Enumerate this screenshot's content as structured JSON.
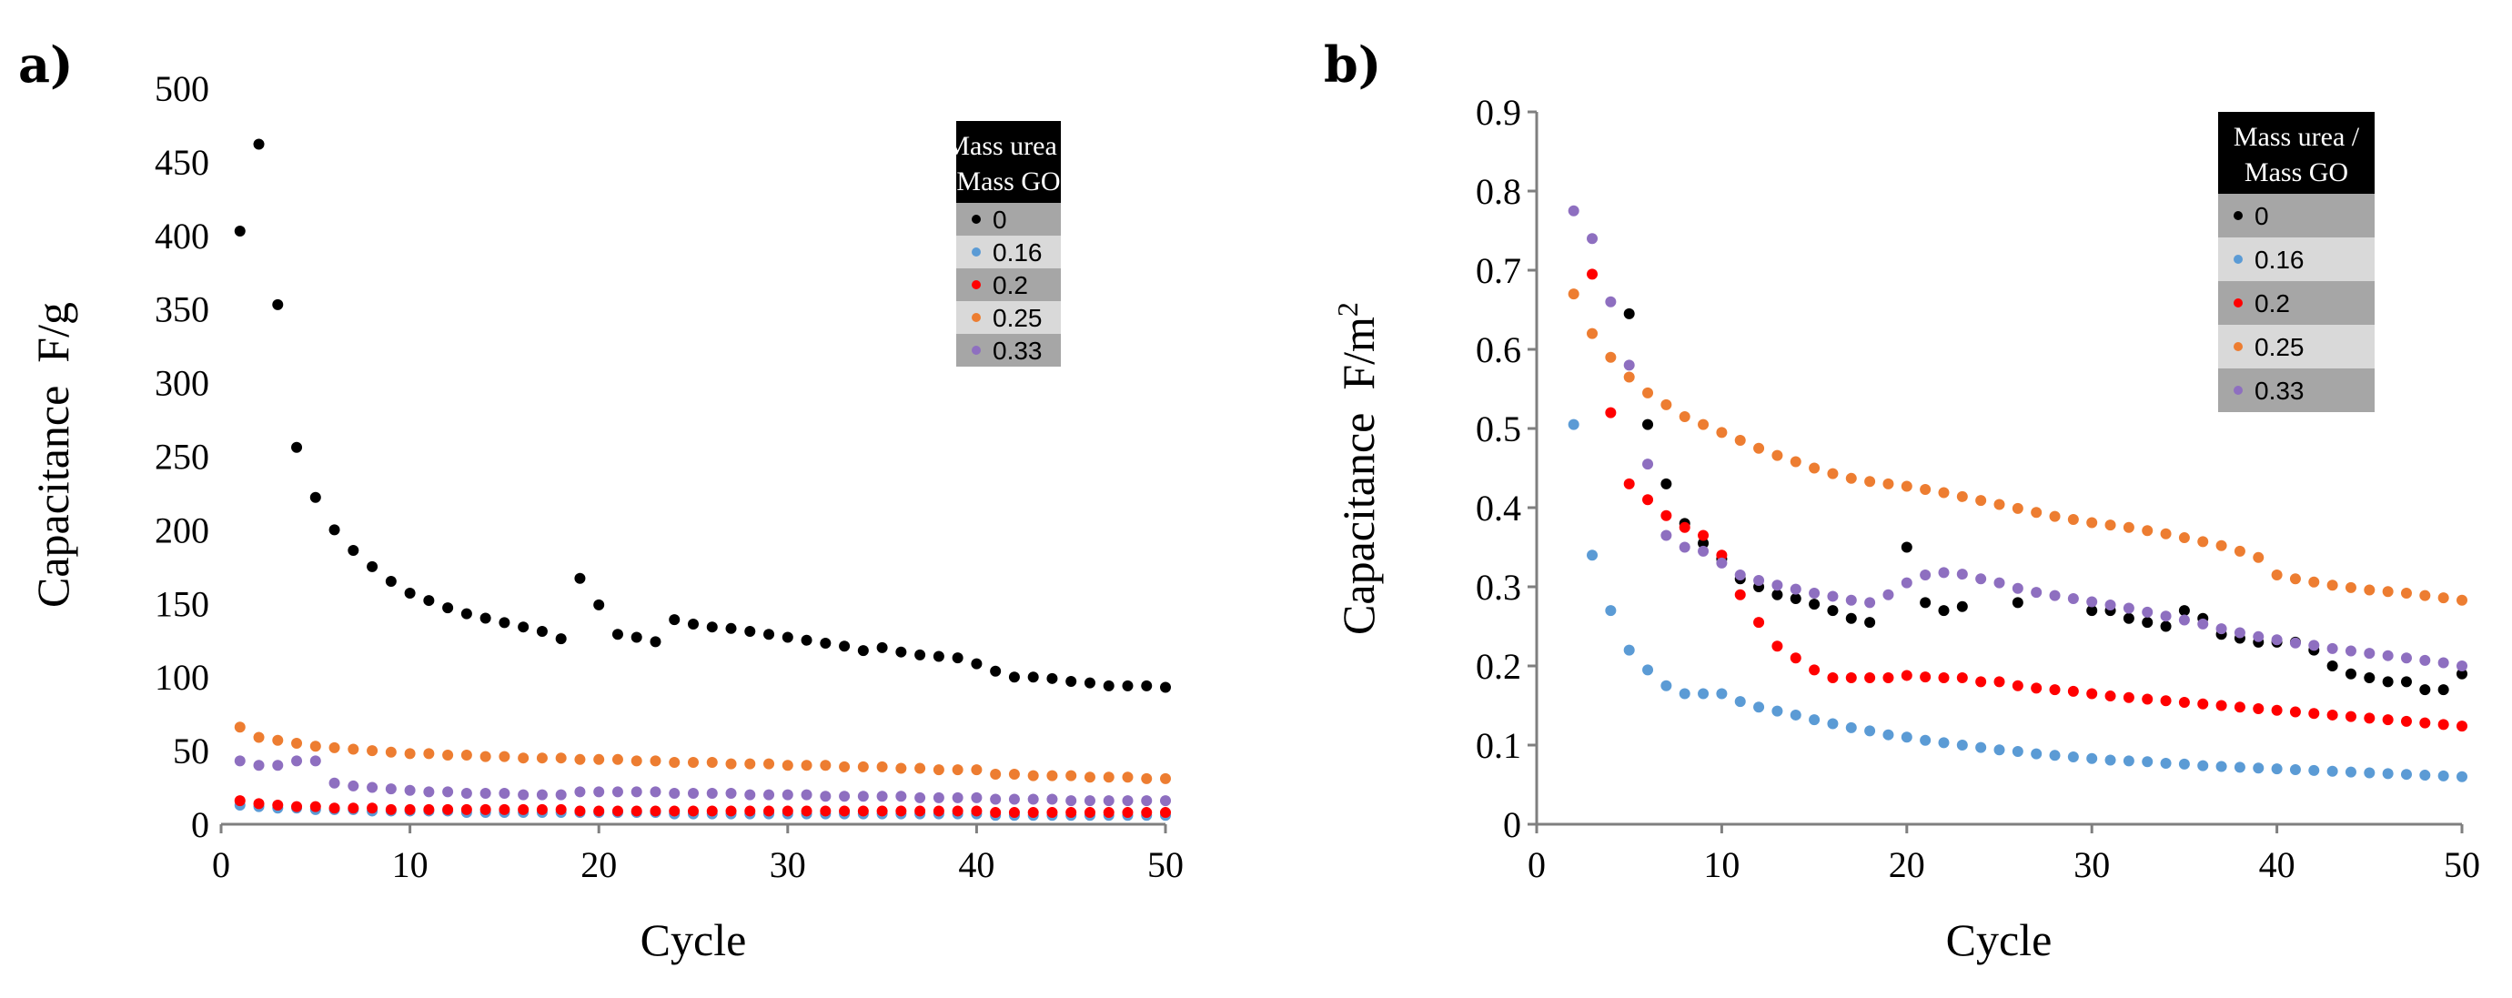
{
  "panels": [
    {
      "letter": "a)"
    },
    {
      "letter": "b)"
    }
  ],
  "legend": {
    "title_line1": "Mass urea /",
    "title_line2": "Mass GO"
  },
  "colors": {
    "0": "#000000",
    "0.16": "#5b9bd5",
    "0.2": "#ff0000",
    "0.25": "#ed7d31",
    "0.33": "#8e6fc0",
    "axis": "#7f7f7f",
    "legend_header": "#000000",
    "legend_dark": "#a6a6a6",
    "legend_light": "#d9d9d9"
  },
  "chart_data": [
    {
      "type": "scatter",
      "panel": "a)",
      "title": "",
      "xlabel": "Cycle",
      "ylabel": "Capacitance  F/g",
      "xlim": [
        0,
        50
      ],
      "ylim": [
        0,
        500
      ],
      "xticks": [
        0,
        10,
        20,
        30,
        40,
        50
      ],
      "yticks": [
        0,
        50,
        100,
        150,
        200,
        250,
        300,
        350,
        400,
        450,
        500
      ],
      "legend_position": "top-right",
      "series": [
        {
          "name": "0",
          "x": [
            1,
            2,
            3,
            4,
            5,
            6,
            7,
            8,
            9,
            10,
            11,
            12,
            13,
            14,
            15,
            16,
            17,
            18,
            19,
            20,
            21,
            22,
            23,
            24,
            25,
            26,
            27,
            28,
            29,
            30,
            31,
            32,
            33,
            34,
            35,
            36,
            37,
            38,
            39,
            40,
            41,
            42,
            43,
            44,
            45,
            46,
            47,
            48,
            49,
            50
          ],
          "y": [
            403,
            462,
            353,
            256,
            222,
            200,
            186,
            175,
            165,
            157,
            152,
            147,
            143,
            140,
            137,
            134,
            131,
            126,
            167,
            149,
            129,
            127,
            124,
            139,
            136,
            134,
            133,
            131,
            129,
            127,
            125,
            123,
            121,
            118,
            120,
            117,
            115,
            114,
            113,
            109,
            104,
            100,
            100,
            99,
            97,
            96,
            94,
            94,
            94,
            93
          ]
        },
        {
          "name": "0.16",
          "x": [
            1,
            2,
            3,
            4,
            5,
            6,
            7,
            8,
            9,
            10,
            11,
            12,
            13,
            14,
            15,
            16,
            17,
            18,
            19,
            20,
            21,
            22,
            23,
            24,
            25,
            26,
            27,
            28,
            29,
            30,
            31,
            32,
            33,
            34,
            35,
            36,
            37,
            38,
            39,
            40,
            41,
            42,
            43,
            44,
            45,
            46,
            47,
            48,
            49,
            50
          ],
          "y": [
            13,
            12,
            11,
            11,
            10,
            10,
            10,
            9,
            9,
            9,
            9,
            9,
            8,
            8,
            8,
            8,
            8,
            8,
            8,
            8,
            8,
            8,
            8,
            7,
            7,
            7,
            7,
            7,
            7,
            7,
            7,
            7,
            7,
            7,
            7,
            7,
            7,
            7,
            7,
            7,
            6,
            6,
            6,
            6,
            6,
            6,
            6,
            6,
            6,
            6
          ]
        },
        {
          "name": "0.2",
          "x": [
            1,
            2,
            3,
            4,
            5,
            6,
            7,
            8,
            9,
            10,
            11,
            12,
            13,
            14,
            15,
            16,
            17,
            18,
            19,
            20,
            21,
            22,
            23,
            24,
            25,
            26,
            27,
            28,
            29,
            30,
            31,
            32,
            33,
            34,
            35,
            36,
            37,
            38,
            39,
            40,
            41,
            42,
            43,
            44,
            45,
            46,
            47,
            48,
            49,
            50
          ],
          "y": [
            16,
            14,
            13,
            12,
            12,
            11,
            11,
            11,
            10,
            10,
            10,
            10,
            10,
            10,
            10,
            10,
            10,
            10,
            9,
            9,
            9,
            9,
            9,
            9,
            9,
            9,
            9,
            9,
            9,
            9,
            9,
            9,
            9,
            9,
            9,
            9,
            9,
            9,
            9,
            9,
            8,
            8,
            8,
            8,
            8,
            8,
            8,
            8,
            8,
            8
          ]
        },
        {
          "name": "0.25",
          "x": [
            1,
            2,
            3,
            4,
            5,
            6,
            7,
            8,
            9,
            10,
            11,
            12,
            13,
            14,
            15,
            16,
            17,
            18,
            19,
            20,
            21,
            22,
            23,
            24,
            25,
            26,
            27,
            28,
            29,
            30,
            31,
            32,
            33,
            34,
            35,
            36,
            37,
            38,
            39,
            40,
            41,
            42,
            43,
            44,
            45,
            46,
            47,
            48,
            49,
            50
          ],
          "y": [
            66,
            59,
            57,
            55,
            53,
            52,
            51,
            50,
            49,
            48,
            48,
            47,
            47,
            46,
            46,
            45,
            45,
            45,
            44,
            44,
            44,
            43,
            43,
            42,
            42,
            42,
            41,
            41,
            41,
            40,
            40,
            40,
            39,
            39,
            39,
            38,
            38,
            37,
            37,
            37,
            34,
            34,
            33,
            33,
            33,
            32,
            32,
            32,
            31,
            31
          ]
        },
        {
          "name": "0.33",
          "x": [
            1,
            2,
            3,
            4,
            5,
            6,
            7,
            8,
            9,
            10,
            11,
            12,
            13,
            14,
            15,
            16,
            17,
            18,
            19,
            20,
            21,
            22,
            23,
            24,
            25,
            26,
            27,
            28,
            29,
            30,
            31,
            32,
            33,
            34,
            35,
            36,
            37,
            38,
            39,
            40,
            41,
            42,
            43,
            44,
            45,
            46,
            47,
            48,
            49,
            50
          ],
          "y": [
            43,
            40,
            40,
            43,
            43,
            28,
            26,
            25,
            24,
            23,
            22,
            22,
            21,
            21,
            21,
            20,
            20,
            20,
            22,
            22,
            22,
            22,
            22,
            21,
            21,
            21,
            21,
            20,
            20,
            20,
            20,
            19,
            19,
            19,
            19,
            19,
            18,
            18,
            18,
            18,
            17,
            17,
            17,
            17,
            16,
            16,
            16,
            16,
            16,
            16
          ]
        }
      ]
    },
    {
      "type": "scatter",
      "panel": "b)",
      "title": "",
      "xlabel": "Cycle",
      "ylabel": "Capacitance  F/m",
      "ylabel_superscript": "2",
      "xlim": [
        0,
        50
      ],
      "ylim": [
        0,
        0.9
      ],
      "xticks": [
        0,
        10,
        20,
        30,
        40,
        50
      ],
      "yticks": [
        0,
        0.1,
        0.2,
        0.3,
        0.4,
        0.5,
        0.6,
        0.7,
        0.8,
        0.9
      ],
      "legend_position": "top-right",
      "series": [
        {
          "name": "0",
          "x": [
            5,
            6,
            7,
            8,
            9,
            10,
            11,
            12,
            13,
            14,
            15,
            16,
            17,
            18,
            20,
            21,
            22,
            23,
            26,
            30,
            31,
            32,
            33,
            34,
            35,
            36,
            37,
            38,
            39,
            40,
            41,
            42,
            43,
            44,
            45,
            46,
            47,
            48,
            49,
            50
          ],
          "y": [
            0.645,
            0.505,
            0.43,
            0.38,
            0.355,
            0.335,
            0.31,
            0.3,
            0.29,
            0.285,
            0.278,
            0.27,
            0.26,
            0.255,
            0.35,
            0.28,
            0.27,
            0.275,
            0.28,
            0.27,
            0.27,
            0.26,
            0.255,
            0.25,
            0.27,
            0.26,
            0.24,
            0.235,
            0.23,
            0.23,
            0.23,
            0.22,
            0.2,
            0.19,
            0.185,
            0.18,
            0.18,
            0.17,
            0.17,
            0.19
          ]
        },
        {
          "name": "0.16",
          "x": [
            2,
            3,
            4,
            5,
            6,
            7,
            8,
            9,
            10,
            11,
            12,
            13,
            14,
            15,
            16,
            17,
            18,
            19,
            20,
            21,
            22,
            23,
            24,
            25,
            26,
            27,
            28,
            29,
            30,
            31,
            32,
            33,
            34,
            35,
            36,
            37,
            38,
            39,
            40,
            41,
            42,
            43,
            44,
            45,
            46,
            47,
            48,
            49,
            50
          ],
          "y": [
            0.505,
            0.34,
            0.27,
            0.22,
            0.195,
            0.175,
            0.165,
            0.165,
            0.165,
            0.155,
            0.148,
            0.143,
            0.138,
            0.132,
            0.127,
            0.122,
            0.118,
            0.113,
            0.11,
            0.106,
            0.103,
            0.1,
            0.097,
            0.094,
            0.092,
            0.089,
            0.087,
            0.085,
            0.083,
            0.081,
            0.08,
            0.079,
            0.077,
            0.076,
            0.074,
            0.073,
            0.072,
            0.071,
            0.07,
            0.069,
            0.068,
            0.067,
            0.066,
            0.065,
            0.064,
            0.063,
            0.062,
            0.061,
            0.06
          ]
        },
        {
          "name": "0.2",
          "x": [
            3,
            4,
            5,
            6,
            7,
            8,
            9,
            10,
            11,
            12,
            13,
            14,
            15,
            16,
            17,
            18,
            19,
            20,
            21,
            22,
            23,
            24,
            25,
            26,
            27,
            28,
            29,
            30,
            31,
            32,
            33,
            34,
            35,
            36,
            37,
            38,
            39,
            40,
            41,
            42,
            43,
            44,
            45,
            46,
            47,
            48,
            49,
            50
          ],
          "y": [
            0.695,
            0.52,
            0.43,
            0.41,
            0.39,
            0.375,
            0.365,
            0.34,
            0.29,
            0.255,
            0.225,
            0.21,
            0.195,
            0.185,
            0.185,
            0.185,
            0.185,
            0.188,
            0.186,
            0.185,
            0.185,
            0.18,
            0.18,
            0.175,
            0.172,
            0.17,
            0.168,
            0.165,
            0.162,
            0.16,
            0.158,
            0.156,
            0.154,
            0.152,
            0.15,
            0.148,
            0.146,
            0.144,
            0.142,
            0.14,
            0.138,
            0.136,
            0.134,
            0.132,
            0.13,
            0.128,
            0.126,
            0.124
          ]
        },
        {
          "name": "0.25",
          "x": [
            2,
            3,
            4,
            5,
            6,
            7,
            8,
            9,
            10,
            11,
            12,
            13,
            14,
            15,
            16,
            17,
            18,
            19,
            20,
            21,
            22,
            23,
            24,
            25,
            26,
            27,
            28,
            29,
            30,
            31,
            32,
            33,
            34,
            35,
            36,
            37,
            38,
            39,
            40,
            41,
            42,
            43,
            44,
            45,
            46,
            47,
            48,
            49,
            50
          ],
          "y": [
            0.67,
            0.62,
            0.59,
            0.565,
            0.545,
            0.53,
            0.515,
            0.505,
            0.495,
            0.485,
            0.475,
            0.466,
            0.458,
            0.45,
            0.443,
            0.437,
            0.433,
            0.43,
            0.427,
            0.423,
            0.419,
            0.414,
            0.409,
            0.404,
            0.399,
            0.394,
            0.389,
            0.385,
            0.381,
            0.378,
            0.375,
            0.371,
            0.367,
            0.362,
            0.357,
            0.352,
            0.345,
            0.337,
            0.315,
            0.31,
            0.306,
            0.302,
            0.299,
            0.296,
            0.294,
            0.292,
            0.289,
            0.286,
            0.283
          ]
        },
        {
          "name": "0.33",
          "x": [
            2,
            3,
            4,
            5,
            6,
            7,
            8,
            9,
            10,
            11,
            12,
            13,
            14,
            15,
            16,
            17,
            18,
            19,
            20,
            21,
            22,
            23,
            24,
            25,
            26,
            27,
            28,
            29,
            30,
            31,
            32,
            33,
            34,
            35,
            36,
            37,
            38,
            39,
            40,
            41,
            42,
            43,
            44,
            45,
            46,
            47,
            48,
            49,
            50
          ],
          "y": [
            0.775,
            0.74,
            0.66,
            0.58,
            0.455,
            0.365,
            0.35,
            0.345,
            0.33,
            0.315,
            0.308,
            0.302,
            0.297,
            0.292,
            0.288,
            0.283,
            0.28,
            0.29,
            0.305,
            0.315,
            0.318,
            0.316,
            0.31,
            0.305,
            0.298,
            0.293,
            0.289,
            0.285,
            0.281,
            0.277,
            0.273,
            0.268,
            0.263,
            0.258,
            0.253,
            0.247,
            0.242,
            0.237,
            0.233,
            0.229,
            0.226,
            0.222,
            0.219,
            0.216,
            0.213,
            0.21,
            0.207,
            0.204,
            0.2
          ]
        }
      ]
    }
  ]
}
